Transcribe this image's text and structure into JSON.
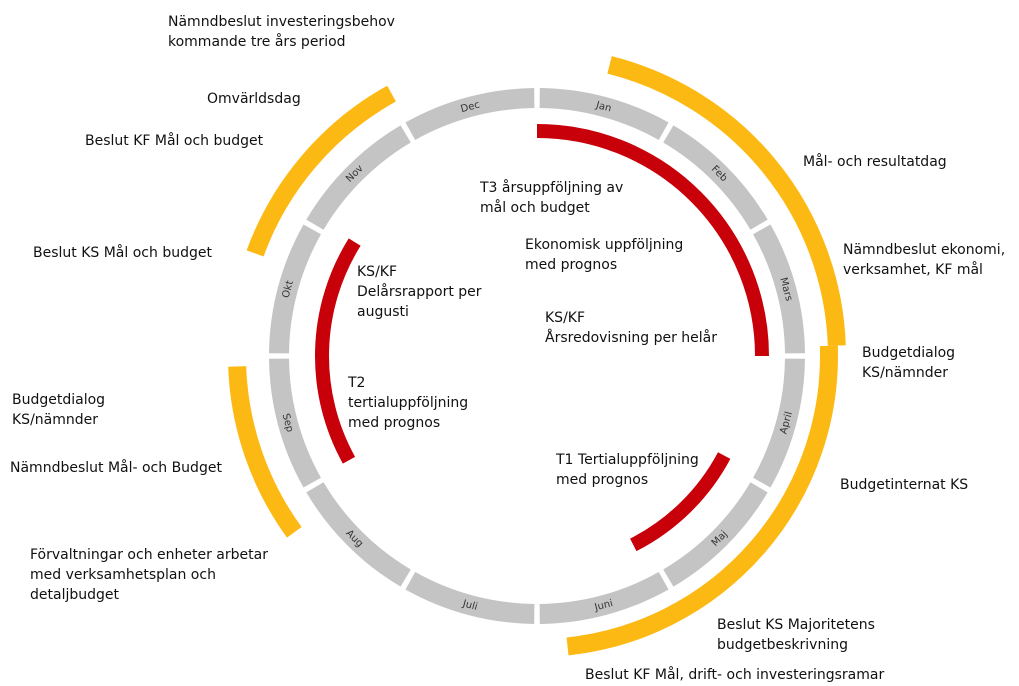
{
  "months": [
    "Jan",
    "Feb",
    "Mars",
    "April",
    "Maj",
    "Juni",
    "Juli",
    "Aug",
    "Sep",
    "Okt",
    "Nov",
    "Dec"
  ],
  "annotations": [
    [
      "Nämndbeslut investeringsbehov",
      "kommande tre års period"
    ],
    [
      "Omvärldsdag"
    ],
    [
      "Beslut KF Mål och budget"
    ],
    [
      "Beslut KS Mål och budget"
    ],
    [
      "Budgetdialog",
      "KS/nämnder"
    ],
    [
      "Nämndbeslut Mål- och Budget"
    ],
    [
      "Förvaltningar och enheter arbetar",
      "med verksamhetsplan och",
      "detaljbudget"
    ],
    [
      "Mål- och resultatdag"
    ],
    [
      "Nämndbeslut ekonomi,",
      "verksamhet, KF mål"
    ],
    [
      "Budgetdialog",
      "KS/nämnder"
    ],
    [
      "Budgetinternat KS"
    ],
    [
      "Beslut KS Majoritetens",
      "budgetbeskrivning"
    ],
    [
      "Beslut KF Mål, drift- och investeringsramar"
    ],
    [
      "T3 årsuppföljning av",
      "mål och budget"
    ],
    [
      "Ekonomisk uppföljning",
      "med prognos"
    ],
    [
      "KS/KF",
      "Årsredovisning per helår"
    ],
    [
      "KS/KF",
      "Delårsrapport per",
      "augusti"
    ],
    [
      "T2",
      "tertialuppföljning",
      "med prognos"
    ],
    [
      "T1  Tertialuppföljning",
      "med prognos"
    ]
  ]
}
